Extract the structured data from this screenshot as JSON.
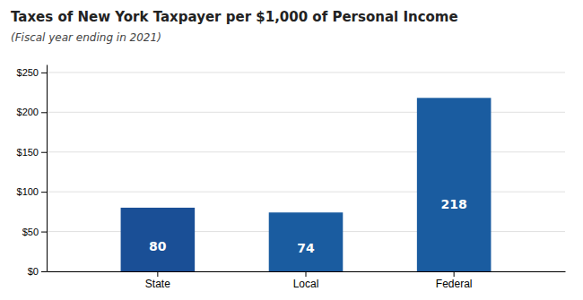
{
  "chart_data": {
    "type": "bar",
    "title": "Taxes of New York Taxpayer per $1,000 of Personal Income",
    "subtitle": "(Fiscal year ending in 2021)",
    "categories": [
      "State",
      "Local",
      "Federal"
    ],
    "values": [
      80,
      74,
      218
    ],
    "colors": [
      "#1a4f96",
      "#1a5ca0",
      "#1a5ca0"
    ],
    "ylim": [
      0,
      260
    ],
    "yticks": [
      {
        "value": 0,
        "label": "$0"
      },
      {
        "value": 50,
        "label": "$50"
      },
      {
        "value": 100,
        "label": "$100"
      },
      {
        "value": 150,
        "label": "$150"
      },
      {
        "value": 200,
        "label": "$200"
      },
      {
        "value": 250,
        "label": "$250"
      }
    ],
    "grid": true,
    "data_labels": true
  }
}
